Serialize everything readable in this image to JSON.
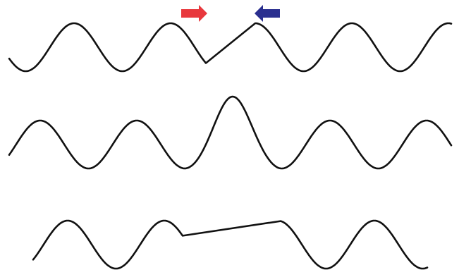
{
  "diagram": {
    "panels": [
      {
        "name": "two-pulses-approaching"
      },
      {
        "name": "pulses-superposed"
      },
      {
        "name": "pulses-cancelled"
      }
    ],
    "arrows": [
      {
        "name": "right-moving-arrow",
        "direction": "right",
        "color": "#e8383d"
      },
      {
        "name": "left-moving-arrow",
        "direction": "left",
        "color": "#2a2f8f"
      }
    ],
    "line_color": "#111111"
  }
}
